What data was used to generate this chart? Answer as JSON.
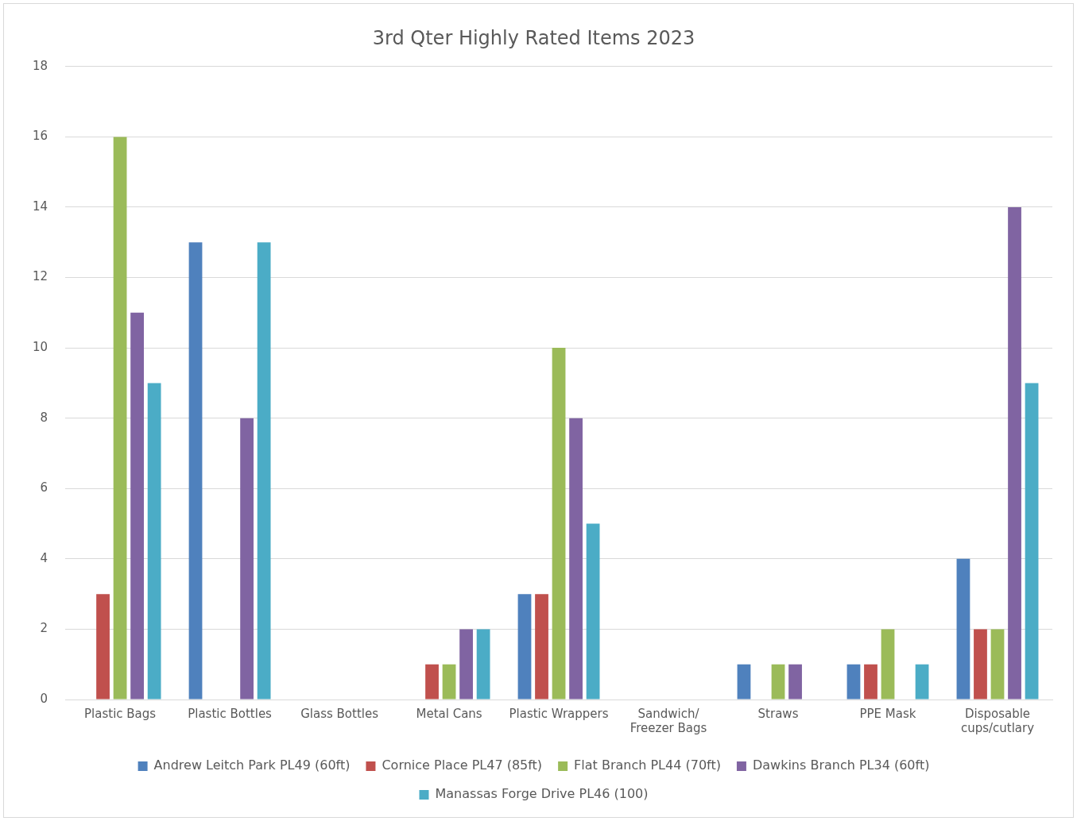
{
  "chart_data": {
    "type": "bar",
    "title": "3rd Qter Highly Rated Items 2023",
    "categories": [
      "Plastic Bags",
      "Plastic Bottles",
      "Glass Bottles",
      "Metal Cans",
      "Plastic Wrappers",
      "Sandwich/ Freezer Bags",
      "Straws",
      "PPE Mask",
      "Disposable cups/cutlary"
    ],
    "series": [
      {
        "name": "Andrew Leitch Park PL49 (60ft)",
        "color": "#4f81bd",
        "values": [
          0,
          13,
          0,
          0,
          3,
          0,
          1,
          1,
          4
        ]
      },
      {
        "name": "Cornice Place PL47 (85ft)",
        "color": "#c0504d",
        "values": [
          3,
          0,
          0,
          1,
          3,
          0,
          0,
          1,
          2
        ]
      },
      {
        "name": "Flat Branch PL44 (70ft)",
        "color": "#9bbb59",
        "values": [
          16,
          0,
          0,
          1,
          10,
          0,
          1,
          2,
          2
        ]
      },
      {
        "name": "Dawkins Branch PL34 (60ft)",
        "color": "#8064a2",
        "values": [
          11,
          8,
          0,
          2,
          8,
          0,
          1,
          0,
          14
        ]
      },
      {
        "name": "Manassas Forge Drive PL46 (100)",
        "color": "#4bacc6",
        "values": [
          9,
          13,
          0,
          2,
          5,
          0,
          0,
          1,
          9
        ]
      }
    ],
    "ylim": [
      0,
      18
    ],
    "yticks": [
      0,
      2,
      4,
      6,
      8,
      10,
      12,
      14,
      16,
      18
    ],
    "grid": "y",
    "legend": "bottom"
  }
}
